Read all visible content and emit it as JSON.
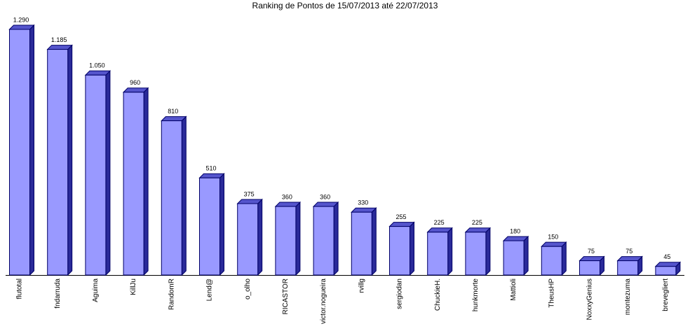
{
  "chart_data": {
    "type": "bar",
    "title": "Ranking de Pontos de 15/07/2013 até 22/07/2013",
    "categories": [
      "flutotal",
      "fndarruda",
      "Aguima",
      "KillJu",
      "RandomR",
      "Lend@",
      "o_olho",
      "RICASTOR",
      "victor.nogueira",
      "rvillg",
      "sergiodan",
      "ChuckieH.",
      "hunkmorte",
      "Mattioli",
      "TheusHP",
      "NoxxyGenius",
      "montezuma",
      "brevegliert"
    ],
    "values": [
      1290,
      1185,
      1050,
      960,
      810,
      510,
      375,
      360,
      360,
      330,
      255,
      225,
      225,
      180,
      150,
      75,
      75,
      45
    ],
    "value_labels": [
      "1.290",
      "1.185",
      "1.050",
      "960",
      "810",
      "510",
      "375",
      "360",
      "360",
      "330",
      "255",
      "225",
      "225",
      "180",
      "150",
      "75",
      "75",
      "45"
    ],
    "color": "#9999ff"
  }
}
